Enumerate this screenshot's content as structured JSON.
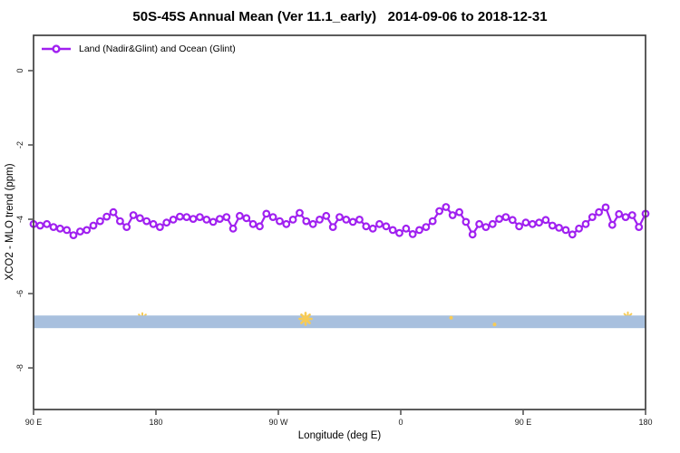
{
  "chart_data": {
    "type": "line",
    "title": "50S-45S Annual Mean (Ver 11.1_early)   2014-09-06 to 2018-12-31",
    "xlabel": "Longitude (deg E)",
    "ylabel": "XCO2 - MLO trend (ppm)",
    "legend": {
      "label": "Land (Nadir&Glint) and Ocean (Glint)",
      "position": "top-left"
    },
    "grid": false,
    "xlim": [
      90,
      540
    ],
    "ylim": [
      -9.12,
      0.95
    ],
    "x_tick_values": [
      90,
      180,
      270,
      360,
      450,
      540
    ],
    "x_tick_labels": [
      "90 E",
      "180",
      "90 W",
      "0",
      "90 E",
      "180"
    ],
    "y_tick_values": [
      0,
      -2,
      -4,
      -6,
      -8
    ],
    "y_tick_labels": [
      "0",
      "-2",
      "-4",
      "-6",
      "-8"
    ],
    "series": [
      {
        "name": "Land (Nadir&Glint) and Ocean (Glint)",
        "color": "#A020F0",
        "marker": "open-circle",
        "x_start": 90,
        "x_end": 540,
        "y": [
          -4.13,
          -4.17,
          -4.13,
          -4.21,
          -4.25,
          -4.29,
          -4.43,
          -4.33,
          -4.29,
          -4.17,
          -4.05,
          -3.93,
          -3.81,
          -4.05,
          -4.21,
          -3.89,
          -3.97,
          -4.05,
          -4.13,
          -4.21,
          -4.09,
          -4.01,
          -3.93,
          -3.94,
          -3.99,
          -3.94,
          -4.01,
          -4.07,
          -3.99,
          -3.94,
          -4.25,
          -3.91,
          -3.97,
          -4.13,
          -4.19,
          -3.85,
          -3.94,
          -4.05,
          -4.13,
          -4.01,
          -3.83,
          -4.05,
          -4.13,
          -4.01,
          -3.91,
          -4.21,
          -3.94,
          -4.01,
          -4.07,
          -4.01,
          -4.19,
          -4.25,
          -4.13,
          -4.19,
          -4.29,
          -4.37,
          -4.25,
          -4.4,
          -4.29,
          -4.21,
          -4.05,
          -3.78,
          -3.67,
          -3.89,
          -3.81,
          -4.07,
          -4.41,
          -4.13,
          -4.21,
          -4.13,
          -3.99,
          -3.94,
          -4.02,
          -4.19,
          -4.09,
          -4.13,
          -4.09,
          -4.02,
          -4.17,
          -4.23,
          -4.29,
          -4.41,
          -4.25,
          -4.13,
          -3.94,
          -3.81,
          -3.68,
          -4.15,
          -3.86,
          -3.94,
          -3.89,
          -4.21,
          -3.85
        ]
      }
    ],
    "band": {
      "y_top": -6.59,
      "y_bottom": -6.93,
      "color": "#A8C0DE"
    },
    "star_markers": {
      "color": "#F7CB55",
      "points": [
        {
          "lon": 170,
          "value": -6.66,
          "size": 11,
          "layer": "behind"
        },
        {
          "lon": 290,
          "value": -6.68,
          "size": 13,
          "layer": "front"
        },
        {
          "lon": 397,
          "value": -6.65,
          "size": 4,
          "layer": "front"
        },
        {
          "lon": 429,
          "value": -6.83,
          "size": 4,
          "layer": "front"
        },
        {
          "lon": 527,
          "value": -6.64,
          "size": 11,
          "layer": "behind"
        }
      ]
    }
  },
  "colors": {
    "series": "#A020F0",
    "band": "#A8C0DE",
    "star": "#F7CB55",
    "frame": "#3f3f3f",
    "axis_text": "#1a1a1a"
  }
}
